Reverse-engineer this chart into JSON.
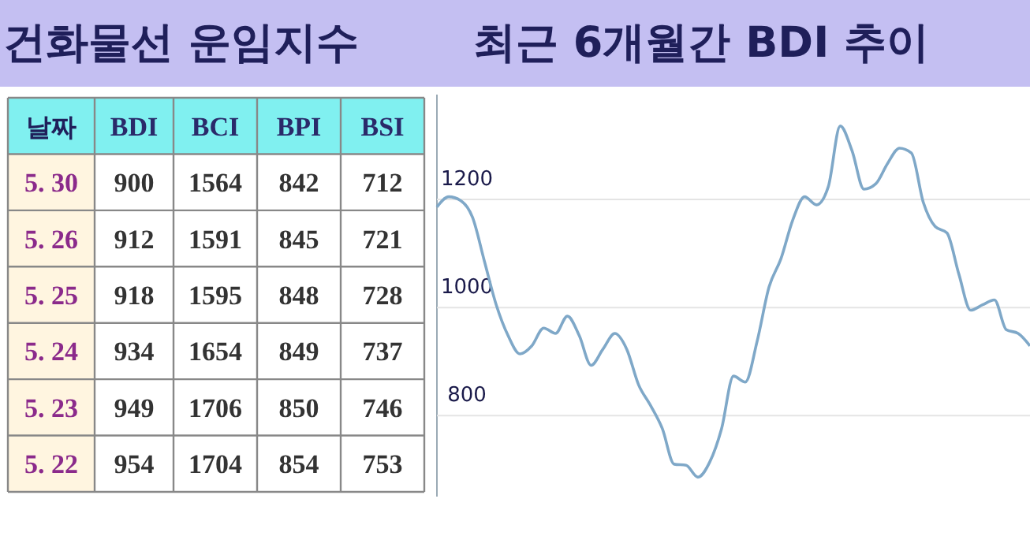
{
  "chart_data": [
    {
      "type": "heatmap",
      "title": "건화물선 운임지수",
      "ylabel": "날짜",
      "categories": [
        "BDI",
        "BCI",
        "BPI",
        "BSI"
      ],
      "y_categories": [
        "5. 30",
        "5. 26",
        "5. 25",
        "5. 24",
        "5. 23",
        "5. 22"
      ],
      "cells": [
        [
          900,
          1564,
          842,
          712
        ],
        [
          912,
          1591,
          845,
          721
        ],
        [
          918,
          1595,
          848,
          728
        ],
        [
          934,
          1654,
          849,
          737
        ],
        [
          949,
          1706,
          850,
          746
        ],
        [
          954,
          1704,
          854,
          753
        ]
      ],
      "data_labels": true
    },
    {
      "type": "line",
      "title": "최근 6개월간 BDI 추이",
      "categories": [
        null,
        null,
        null,
        null,
        null,
        null,
        null,
        null,
        null,
        null,
        null,
        null,
        null,
        null,
        null,
        null,
        null,
        null,
        null,
        null,
        null,
        null,
        null,
        null,
        null,
        null,
        null,
        null,
        null,
        null,
        null,
        null,
        null,
        null,
        null,
        null,
        null,
        null,
        null,
        null,
        null,
        null,
        null,
        null,
        null,
        null,
        null,
        null,
        null,
        null,
        null
      ],
      "series": [
        {
          "color": "#7fa8c8",
          "values": [
            1186,
            1205,
            1198,
            1167,
            1086,
            1005,
            948,
            914,
            929,
            962,
            952,
            984,
            948,
            893,
            923,
            952,
            923,
            857,
            819,
            776,
            710,
            708,
            686,
            714,
            776,
            873,
            862,
            938,
            1038,
            1090,
            1162,
            1205,
            1190,
            1224,
            1336,
            1290,
            1219,
            1229,
            1267,
            1295,
            1286,
            1195,
            1150,
            1138,
            1062,
            995,
            1005,
            1014,
            959,
            952,
            929
          ]
        }
      ],
      "ylim": [
        650,
        1400
      ],
      "yticks": [
        800,
        1000,
        1200
      ],
      "grid": "y",
      "marker": "none",
      "line_style": "solid"
    }
  ]
}
